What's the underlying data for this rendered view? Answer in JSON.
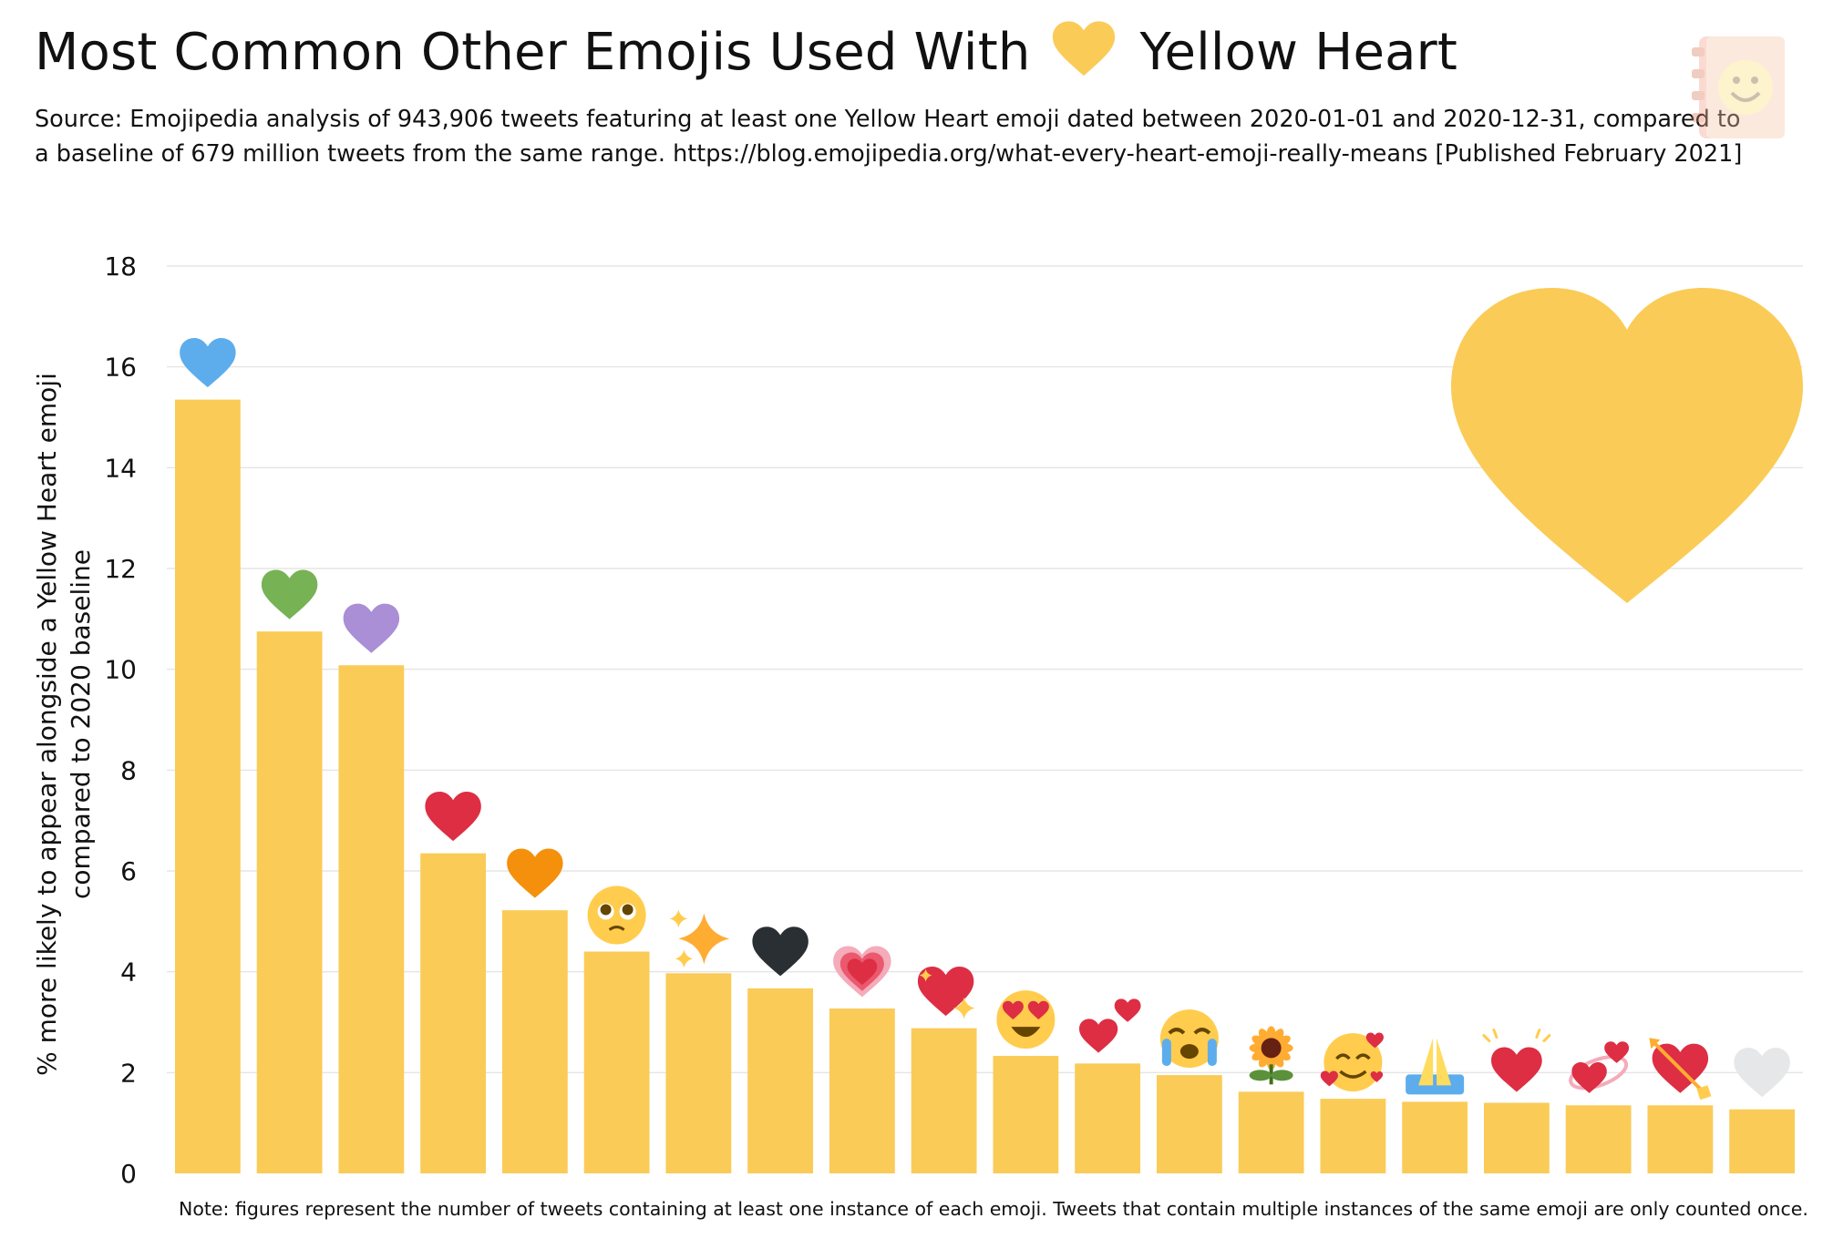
{
  "title": {
    "text_before": "Most Common Other Emojis Used With",
    "text_after": "Yellow Heart",
    "emoji_icon": "yellow-heart-icon"
  },
  "source_text": "Source: Emojipedia analysis of 943,906 tweets featuring at least one Yellow Heart emoji dated between 2020-01-01 and 2020-12-31, compared to a baseline of 679 million tweets from the same range. https://blog.emojipedia.org/what-every-heart-emoji-really-means [Published February 2021]",
  "note_text": "Note: figures represent the number of tweets containing at least one instance of each emoji. Tweets that contain multiple instances of the same emoji are only counted once.",
  "logo_icon": "emojipedia-logo-icon",
  "colors": {
    "bar": "#FACB57",
    "yellow_heart": "#FACB57",
    "grid": "#E6E6E6",
    "text": "#111111"
  },
  "chart_data": {
    "type": "bar",
    "title": "Most Common Other Emojis Used With Yellow Heart",
    "xlabel": "",
    "ylabel": "% more likely to appear alongside a Yellow Heart emoji compared to 2020 baseline",
    "ylabel_lines": [
      "% more likely to appear alongside a Yellow Heart emoji",
      "compared to 2020 baseline"
    ],
    "ylim": [
      0,
      18
    ],
    "yticks": [
      0,
      2,
      4,
      6,
      8,
      10,
      12,
      14,
      16,
      18
    ],
    "grid": "horizontal",
    "categories": [
      "blue-heart-icon",
      "green-heart-icon",
      "purple-heart-icon",
      "red-heart-icon",
      "orange-heart-icon",
      "pleading-face-icon",
      "sparkles-icon",
      "black-heart-icon",
      "growing-heart-icon",
      "sparkling-heart-icon",
      "heart-eyes-face-icon",
      "two-hearts-icon",
      "loudly-crying-face-icon",
      "sunflower-icon",
      "smiling-face-with-hearts-icon",
      "folded-hands-icon",
      "beating-heart-icon",
      "revolving-hearts-icon",
      "heart-with-arrow-icon",
      "white-heart-icon"
    ],
    "values": [
      15.35,
      10.75,
      10.08,
      6.35,
      5.22,
      4.4,
      3.97,
      3.67,
      3.27,
      2.88,
      2.33,
      2.18,
      1.95,
      1.62,
      1.48,
      1.42,
      1.4,
      1.35,
      1.35,
      1.27
    ]
  }
}
